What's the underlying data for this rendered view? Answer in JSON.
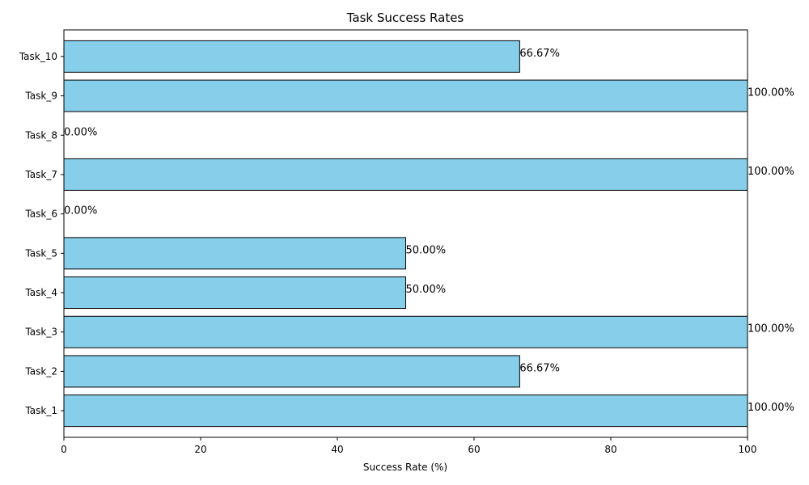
{
  "chart_data": {
    "type": "bar",
    "orientation": "horizontal",
    "title": "Task Success Rates",
    "xlabel": "Success Rate (%)",
    "ylabel": "",
    "xlim": [
      0,
      100
    ],
    "x_ticks": [
      0,
      20,
      40,
      60,
      80,
      100
    ],
    "categories": [
      "Task_1",
      "Task_2",
      "Task_3",
      "Task_4",
      "Task_5",
      "Task_6",
      "Task_7",
      "Task_8",
      "Task_9",
      "Task_10"
    ],
    "values": [
      100.0,
      66.67,
      100.0,
      50.0,
      50.0,
      0.0,
      100.0,
      0.0,
      100.0,
      66.67
    ],
    "value_labels": [
      "100.00%",
      "66.67%",
      "100.00%",
      "50.00%",
      "50.00%",
      "0.00%",
      "100.00%",
      "0.00%",
      "100.00%",
      "66.67%"
    ],
    "bar_color": "#87ceeb",
    "edge_color": "#000000",
    "grid": false,
    "legend": "none"
  }
}
